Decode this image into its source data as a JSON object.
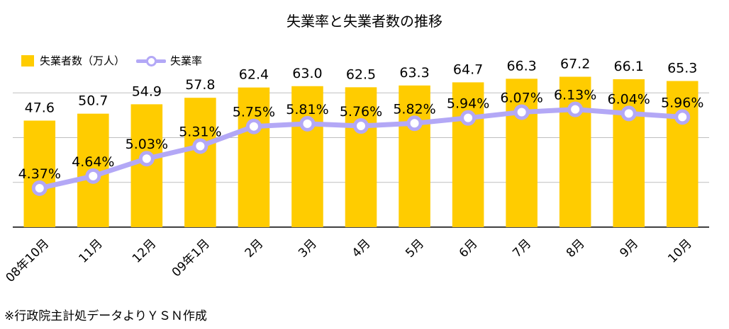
{
  "colors": {
    "bar": "#FFCC00",
    "line": "#B3A8F6",
    "grid": "#BFBFBF",
    "axis": "#000000"
  },
  "chart_data": {
    "type": "bar",
    "title": "失業率と失業者数の推移",
    "categories": [
      "08年10月",
      "11月",
      "12月",
      "09年1月",
      "2月",
      "3月",
      "4月",
      "5月",
      "6月",
      "7月",
      "8月",
      "9月",
      "10月"
    ],
    "series": [
      {
        "name": "失業者数（万人）",
        "type": "bar",
        "values": [
          47.6,
          50.7,
          54.9,
          57.8,
          62.4,
          63.0,
          62.5,
          63.3,
          64.7,
          66.3,
          67.2,
          66.1,
          65.3
        ],
        "labels": [
          "47.6",
          "50.7",
          "54.9",
          "57.8",
          "62.4",
          "63.0",
          "62.5",
          "63.3",
          "64.7",
          "66.3",
          "67.2",
          "66.1",
          "65.3"
        ]
      },
      {
        "name": "失業率",
        "type": "line",
        "values": [
          4.37,
          4.64,
          5.03,
          5.31,
          5.75,
          5.81,
          5.76,
          5.82,
          5.94,
          6.07,
          6.13,
          6.04,
          5.96
        ],
        "labels": [
          "4.37%",
          "4.64%",
          "5.03%",
          "5.31%",
          "5.75%",
          "5.81%",
          "5.76%",
          "5.82%",
          "5.94%",
          "6.07%",
          "6.13%",
          "6.04%",
          "5.96%"
        ]
      }
    ],
    "y_left_range": [
      0,
      80
    ],
    "y_right_range": [
      3.5,
      7.5
    ],
    "gridlines": [
      20,
      40,
      60
    ],
    "legend_position": "top-left",
    "source": "※行政院主計処データよりＹＳＮ作成"
  }
}
